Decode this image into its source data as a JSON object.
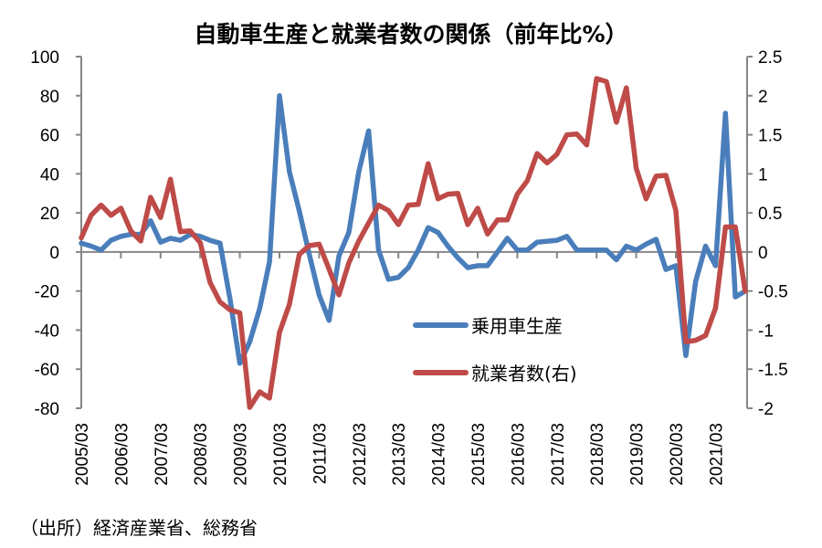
{
  "chart_data": {
    "type": "line",
    "title": "自動車生産と就業者数の関係（前年比%）",
    "source": "（出所）経済産業省、総務省",
    "x_tick_labels": [
      "2005/03",
      "2006/03",
      "2007/03",
      "2008/03",
      "2009/03",
      "2010/03",
      "2011/03",
      "2012/03",
      "2013/03",
      "2014/03",
      "2015/03",
      "2016/03",
      "2017/03",
      "2018/03",
      "2019/03",
      "2020/03",
      "2021/03"
    ],
    "x": [
      "2005/03",
      "2005/06",
      "2005/09",
      "2005/12",
      "2006/03",
      "2006/06",
      "2006/09",
      "2006/12",
      "2007/03",
      "2007/06",
      "2007/09",
      "2007/12",
      "2008/03",
      "2008/06",
      "2008/09",
      "2008/12",
      "2009/03",
      "2009/06",
      "2009/09",
      "2009/12",
      "2010/03",
      "2010/06",
      "2010/09",
      "2010/12",
      "2011/03",
      "2011/06",
      "2011/09",
      "2011/12",
      "2012/03",
      "2012/06",
      "2012/09",
      "2012/12",
      "2013/03",
      "2013/06",
      "2013/09",
      "2013/12",
      "2014/03",
      "2014/06",
      "2014/09",
      "2014/12",
      "2015/03",
      "2015/06",
      "2015/09",
      "2015/12",
      "2016/03",
      "2016/06",
      "2016/09",
      "2016/12",
      "2017/03",
      "2017/06",
      "2017/09",
      "2017/12",
      "2018/03",
      "2018/06",
      "2018/09",
      "2018/12",
      "2019/03",
      "2019/06",
      "2019/09",
      "2019/12",
      "2020/03",
      "2020/06",
      "2020/09",
      "2020/12",
      "2021/03",
      "2021/06",
      "2021/09",
      "2021/12"
    ],
    "y_left": {
      "range": [
        -80,
        100
      ],
      "ticks": [
        "100",
        "80",
        "60",
        "40",
        "20",
        "0",
        "-20",
        "-40",
        "-60",
        "-80"
      ]
    },
    "y_right": {
      "range": [
        -2,
        2.5
      ],
      "ticks": [
        "2.5",
        "2",
        "1.5",
        "1",
        "0.5",
        "0",
        "-0.5",
        "-1",
        "-1.5",
        "-2"
      ]
    },
    "grid": false,
    "legend_placement": "bottom-center",
    "series": [
      {
        "name": "乗用車生産",
        "axis": "left",
        "color": "#4a7ebb",
        "values": [
          4.5,
          3,
          1,
          6,
          8,
          9,
          9,
          16,
          5,
          7,
          6,
          9,
          8,
          6,
          4.5,
          -24,
          -57,
          -46,
          -29,
          -5,
          80,
          41,
          21,
          -1,
          -22,
          -35,
          -2,
          10,
          41,
          62,
          1,
          -14,
          -13,
          -8,
          1,
          12.5,
          10,
          3,
          -3,
          -8,
          -7,
          -7,
          0,
          7,
          1,
          1,
          5,
          5.5,
          6,
          8,
          1,
          1,
          1,
          1,
          -4,
          3,
          1,
          4,
          6.5,
          -9,
          -7,
          -53,
          -15,
          3,
          -7,
          71,
          -23,
          -20
        ]
      },
      {
        "name": "就業者数(右)",
        "axis": "right",
        "color": "#be4b48",
        "values": [
          0.18,
          0.47,
          0.6,
          0.47,
          0.56,
          0.27,
          0.14,
          0.7,
          0.44,
          0.93,
          0.26,
          0.27,
          0.12,
          -0.39,
          -0.64,
          -0.74,
          -0.78,
          -1.99,
          -1.79,
          -1.87,
          -1.03,
          -0.67,
          -0.03,
          0.08,
          0.1,
          -0.22,
          -0.55,
          -0.14,
          0.14,
          0.37,
          0.6,
          0.53,
          0.35,
          0.6,
          0.61,
          1.13,
          0.68,
          0.74,
          0.75,
          0.35,
          0.56,
          0.23,
          0.41,
          0.41,
          0.74,
          0.91,
          1.26,
          1.14,
          1.25,
          1.5,
          1.51,
          1.37,
          2.22,
          2.18,
          1.66,
          2.1,
          1.07,
          0.68,
          0.97,
          0.98,
          0.53,
          -1.15,
          -1.13,
          -1.07,
          -0.72,
          0.32,
          0.32,
          -0.5
        ]
      }
    ]
  }
}
